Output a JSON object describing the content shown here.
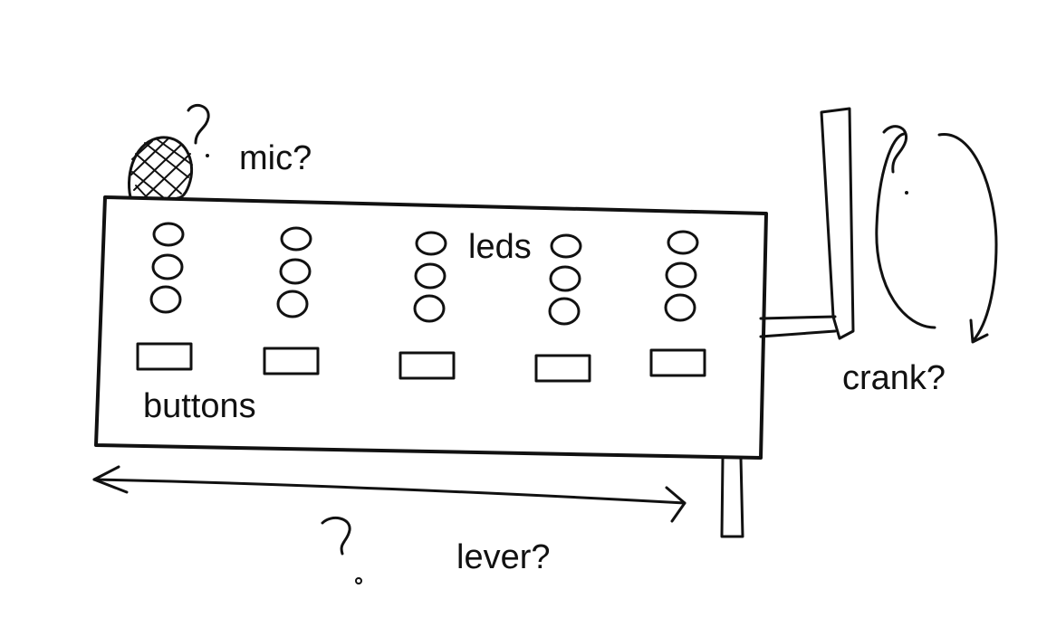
{
  "labels": {
    "mic": "mic?",
    "leds": "leds",
    "buttons": "buttons",
    "crank": "crank?",
    "lever": "lever?",
    "question_mark": "?"
  },
  "components": {
    "led_columns": 5,
    "leds_per_column": 3,
    "buttons": 5
  },
  "colors": {
    "ink": "#111111",
    "background": "#ffffff"
  }
}
